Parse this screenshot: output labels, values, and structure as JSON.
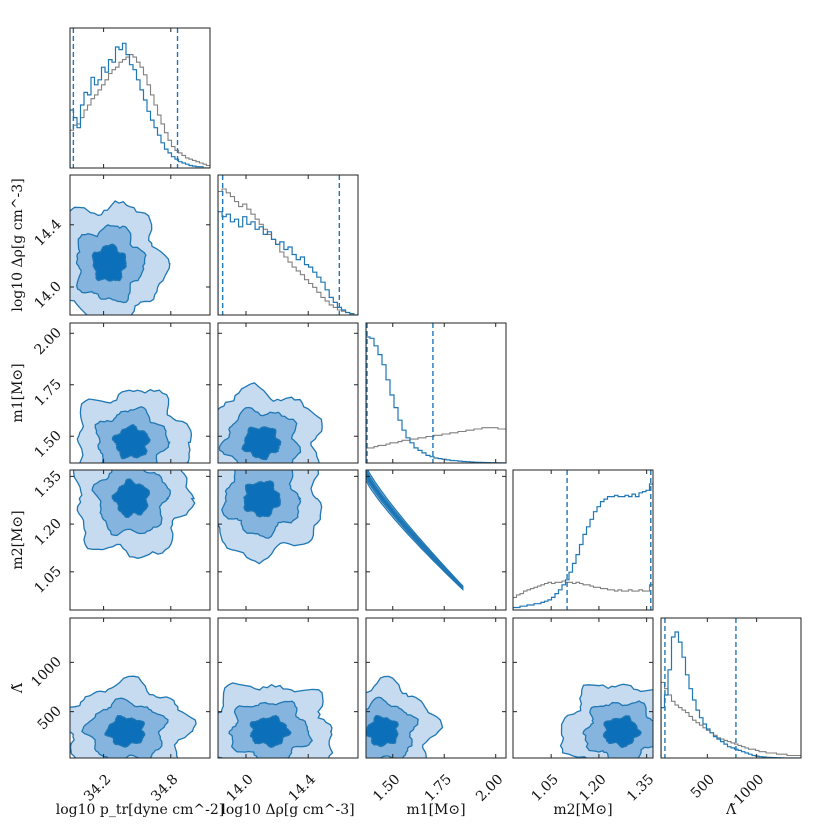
{
  "chart_data": {
    "type": "corner",
    "parameters": [
      {
        "id": "ptr",
        "label": "log10 p_tr[dyne cm^-2]",
        "range": [
          33.9,
          35.15
        ],
        "ticks": [
          34.2,
          34.8
        ],
        "tick_labels": [
          "34.2",
          "34.8"
        ]
      },
      {
        "id": "drho",
        "label": "log10 Δρ[g cm^-3]",
        "range": [
          13.82,
          14.72
        ],
        "ticks": [
          14.0,
          14.4
        ],
        "tick_labels": [
          "14.0",
          "14.4"
        ]
      },
      {
        "id": "m1",
        "label": "m1[M⊙]",
        "range": [
          1.37,
          2.05
        ],
        "ticks": [
          1.5,
          1.75,
          2.0
        ],
        "tick_labels": [
          "1.50",
          "1.75",
          "2.00"
        ]
      },
      {
        "id": "m2",
        "label": "m2[M⊙]",
        "range": [
          0.93,
          1.37
        ],
        "ticks": [
          1.05,
          1.2,
          1.35
        ],
        "tick_labels": [
          "1.05",
          "1.20",
          "1.35"
        ]
      },
      {
        "id": "lambda",
        "label": "Λ̃",
        "range": [
          30,
          1450
        ],
        "ticks": [
          500,
          1000
        ],
        "tick_labels": [
          "500",
          "1000"
        ]
      }
    ],
    "y_axis_labels": [
      "log10 Δρ[g cm^-3]",
      "m1[M⊙]",
      "m2[M⊙]",
      "Λ̃"
    ],
    "quantiles": {
      "ptr": [
        33.93,
        34.86
      ],
      "drho": [
        13.85,
        14.6
      ],
      "m1": [
        1.375,
        1.695
      ],
      "m2": [
        1.1,
        1.363
      ],
      "lambda": [
        70,
        790
      ]
    },
    "histograms": {
      "ptr": {
        "prior": [
          0.3,
          0.34,
          0.35,
          0.4,
          0.46,
          0.5,
          0.55,
          0.58,
          0.62,
          0.66,
          0.7,
          0.75,
          0.78,
          0.8,
          0.84,
          0.86,
          0.88,
          0.9,
          0.88,
          0.84,
          0.8,
          0.74,
          0.66,
          0.58,
          0.5,
          0.42,
          0.35,
          0.28,
          0.22,
          0.17,
          0.14,
          0.12,
          0.1,
          0.08,
          0.07,
          0.06,
          0.05,
          0.04,
          0.03,
          0.02
        ],
        "post": [
          0.46,
          0.4,
          0.32,
          0.5,
          0.6,
          0.58,
          0.72,
          0.66,
          0.7,
          0.8,
          0.76,
          0.86,
          0.84,
          0.96,
          0.94,
          0.99,
          0.9,
          0.82,
          0.78,
          0.7,
          0.62,
          0.54,
          0.45,
          0.38,
          0.32,
          0.26,
          0.2,
          0.15,
          0.12,
          0.09,
          0.07,
          0.05,
          0.04,
          0.03,
          0.02,
          0.015,
          0.01,
          0.01,
          0.0,
          0.0
        ]
      },
      "drho": {
        "prior": [
          0.98,
          1.0,
          0.97,
          0.94,
          0.9,
          0.86,
          0.88,
          0.84,
          0.8,
          0.76,
          0.72,
          0.68,
          0.64,
          0.6,
          0.56,
          0.5,
          0.46,
          0.42,
          0.38,
          0.35,
          0.32,
          0.28,
          0.25,
          0.22,
          0.18,
          0.14,
          0.11,
          0.08,
          0.06,
          0.04,
          0.03,
          0.02,
          0.01,
          0.0
        ],
        "post": [
          0.82,
          0.78,
          0.8,
          0.74,
          0.76,
          0.7,
          0.78,
          0.72,
          0.74,
          0.68,
          0.7,
          0.64,
          0.66,
          0.6,
          0.56,
          0.58,
          0.52,
          0.54,
          0.48,
          0.44,
          0.46,
          0.4,
          0.38,
          0.34,
          0.3,
          0.26,
          0.2,
          0.14,
          0.1,
          0.06,
          0.04,
          0.02,
          0.01,
          0.0
        ]
      },
      "m1": {
        "prior": [
          0.12,
          0.12,
          0.13,
          0.14,
          0.14,
          0.15,
          0.16,
          0.16,
          0.17,
          0.18,
          0.18,
          0.19,
          0.19,
          0.2,
          0.2,
          0.21,
          0.21,
          0.22,
          0.22,
          0.23,
          0.23,
          0.24,
          0.24,
          0.25,
          0.25,
          0.26,
          0.26,
          0.27,
          0.27,
          0.28,
          0.28,
          0.28,
          0.28,
          0.27,
          0.27
        ],
        "post": [
          1.0,
          0.99,
          0.93,
          0.86,
          0.78,
          0.66,
          0.54,
          0.44,
          0.34,
          0.26,
          0.2,
          0.16,
          0.12,
          0.1,
          0.08,
          0.06,
          0.05,
          0.04,
          0.035,
          0.03,
          0.025,
          0.02,
          0.018,
          0.015,
          0.012,
          0.01,
          0.008,
          0.006,
          0.005,
          0.004,
          0.003,
          0.002,
          0.002,
          0.001,
          0.001
        ]
      },
      "m2": {
        "prior": [
          0.1,
          0.12,
          0.13,
          0.15,
          0.16,
          0.17,
          0.18,
          0.19,
          0.2,
          0.21,
          0.22,
          0.21,
          0.22,
          0.22,
          0.23,
          0.22,
          0.22,
          0.21,
          0.22,
          0.21,
          0.2,
          0.2,
          0.19,
          0.18,
          0.18,
          0.17,
          0.17,
          0.16,
          0.16,
          0.15,
          0.16,
          0.15,
          0.15,
          0.16,
          0.15,
          0.15,
          0.16,
          0.15,
          0.15,
          0.2
        ],
        "post": [
          0.02,
          0.02,
          0.03,
          0.03,
          0.04,
          0.04,
          0.05,
          0.05,
          0.06,
          0.07,
          0.08,
          0.1,
          0.13,
          0.16,
          0.2,
          0.24,
          0.3,
          0.37,
          0.44,
          0.52,
          0.6,
          0.66,
          0.72,
          0.78,
          0.82,
          0.86,
          0.88,
          0.9,
          0.9,
          0.91,
          0.9,
          0.9,
          0.91,
          0.9,
          0.92,
          0.9,
          0.93,
          0.94,
          0.95,
          1.0
        ]
      },
      "lambda": {
        "prior": [
          0.6,
          0.55,
          0.5,
          0.45,
          0.42,
          0.4,
          0.38,
          0.36,
          0.33,
          0.3,
          0.28,
          0.26,
          0.24,
          0.22,
          0.2,
          0.18,
          0.16,
          0.15,
          0.14,
          0.13,
          0.12,
          0.11,
          0.1,
          0.09,
          0.08,
          0.07,
          0.07,
          0.06,
          0.05,
          0.05,
          0.04,
          0.04,
          0.04,
          0.03,
          0.03,
          0.03,
          0.02,
          0.02,
          0.02,
          0.02
        ],
        "post": [
          0.4,
          0.5,
          0.7,
          0.96,
          1.0,
          0.92,
          0.8,
          0.66,
          0.55,
          0.46,
          0.38,
          0.32,
          0.27,
          0.23,
          0.2,
          0.17,
          0.15,
          0.13,
          0.11,
          0.09,
          0.08,
          0.07,
          0.06,
          0.05,
          0.04,
          0.03,
          0.02,
          0.015,
          0.01,
          0.008,
          0.005,
          0.004,
          0.003,
          0.002,
          0.001,
          0.0,
          0.0,
          0.0,
          0.0,
          0.0
        ]
      }
    },
    "contour_fill_colors": [
      "#c6dbef",
      "#85b5de",
      "#0b6fba"
    ],
    "line_colors": {
      "posterior": "#1f77b4",
      "prior": "#808080"
    },
    "contour_centers": {
      "drho|ptr": {
        "cx": 34.25,
        "cy": 14.15,
        "sx": 0.48,
        "sy": 0.38
      },
      "m1|ptr": {
        "cx": 34.45,
        "cy": 1.47,
        "sx": 0.5,
        "sy": 0.25
      },
      "m1|drho": {
        "cx": 14.1,
        "cy": 1.47,
        "sx": 0.38,
        "sy": 0.25
      },
      "m2|ptr": {
        "cx": 34.45,
        "cy": 1.28,
        "sx": 0.5,
        "sy": 0.18
      },
      "m2|drho": {
        "cx": 14.1,
        "cy": 1.28,
        "sx": 0.38,
        "sy": 0.18
      },
      "lambda|ptr": {
        "cx": 34.4,
        "cy": 300,
        "sx": 0.55,
        "sy": 480
      },
      "lambda|drho": {
        "cx": 14.15,
        "cy": 300,
        "sx": 0.4,
        "sy": 480
      },
      "lambda|m1": {
        "cx": 1.45,
        "cy": 300,
        "sx": 0.25,
        "sy": 480
      },
      "lambda|m2": {
        "cx": 1.27,
        "cy": 300,
        "sx": 0.18,
        "sy": 480
      }
    }
  }
}
